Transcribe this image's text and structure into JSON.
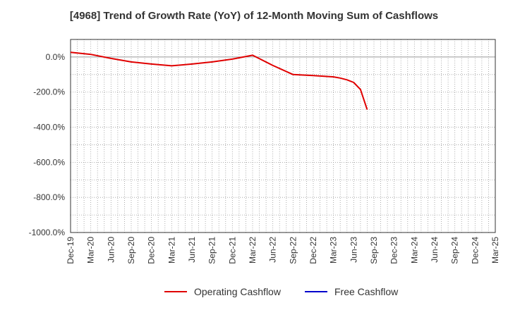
{
  "chart_data": {
    "type": "line",
    "title": "[4968]  Trend of Growth Rate (YoY) of 12-Month Moving Sum of Cashflows",
    "xlabel": "",
    "ylabel": "",
    "ylim": [
      -1000,
      100
    ],
    "yticks": [
      "0.0%",
      "-200.0%",
      "-400.0%",
      "-600.0%",
      "-800.0%",
      "-1000.0%"
    ],
    "ytick_values": [
      0,
      -200,
      -400,
      -600,
      -800,
      -1000
    ],
    "x_categories": [
      "Dec-19",
      "Mar-20",
      "Jun-20",
      "Sep-20",
      "Dec-20",
      "Mar-21",
      "Jun-21",
      "Sep-21",
      "Dec-21",
      "Mar-22",
      "Jun-22",
      "Sep-22",
      "Dec-22",
      "Mar-23",
      "Jun-23",
      "Sep-23",
      "Dec-23",
      "Mar-24",
      "Jun-24",
      "Sep-24",
      "Dec-24",
      "Mar-25"
    ],
    "grid": true,
    "legend_position": "bottom",
    "series": [
      {
        "name": "Operating Cashflow",
        "color": "#e00000",
        "points": [
          {
            "x": "Dec-19",
            "y": 27
          },
          {
            "x": "Mar-20",
            "y": 15
          },
          {
            "x": "Jun-20",
            "y": -8
          },
          {
            "x": "Sep-20",
            "y": -28
          },
          {
            "x": "Dec-20",
            "y": -40
          },
          {
            "x": "Mar-21",
            "y": -50
          },
          {
            "x": "Jun-21",
            "y": -40
          },
          {
            "x": "Sep-21",
            "y": -28
          },
          {
            "x": "Dec-21",
            "y": -12
          },
          {
            "x": "Mar-22",
            "y": 10
          },
          {
            "x": "Jun-22",
            "y": -48
          },
          {
            "x": "Sep-22",
            "y": -100
          },
          {
            "x": "Dec-22",
            "y": -106
          },
          {
            "x": "Mar-23",
            "y": -113
          },
          {
            "x": "Apr-23",
            "y": -120
          },
          {
            "x": "May-23",
            "y": -130
          },
          {
            "x": "Jun-23",
            "y": -145
          },
          {
            "x": "Jul-23",
            "y": -185
          },
          {
            "x": "Aug-23",
            "y": -300
          }
        ]
      },
      {
        "name": "Free Cashflow",
        "color": "#0000cc",
        "points": []
      }
    ]
  }
}
